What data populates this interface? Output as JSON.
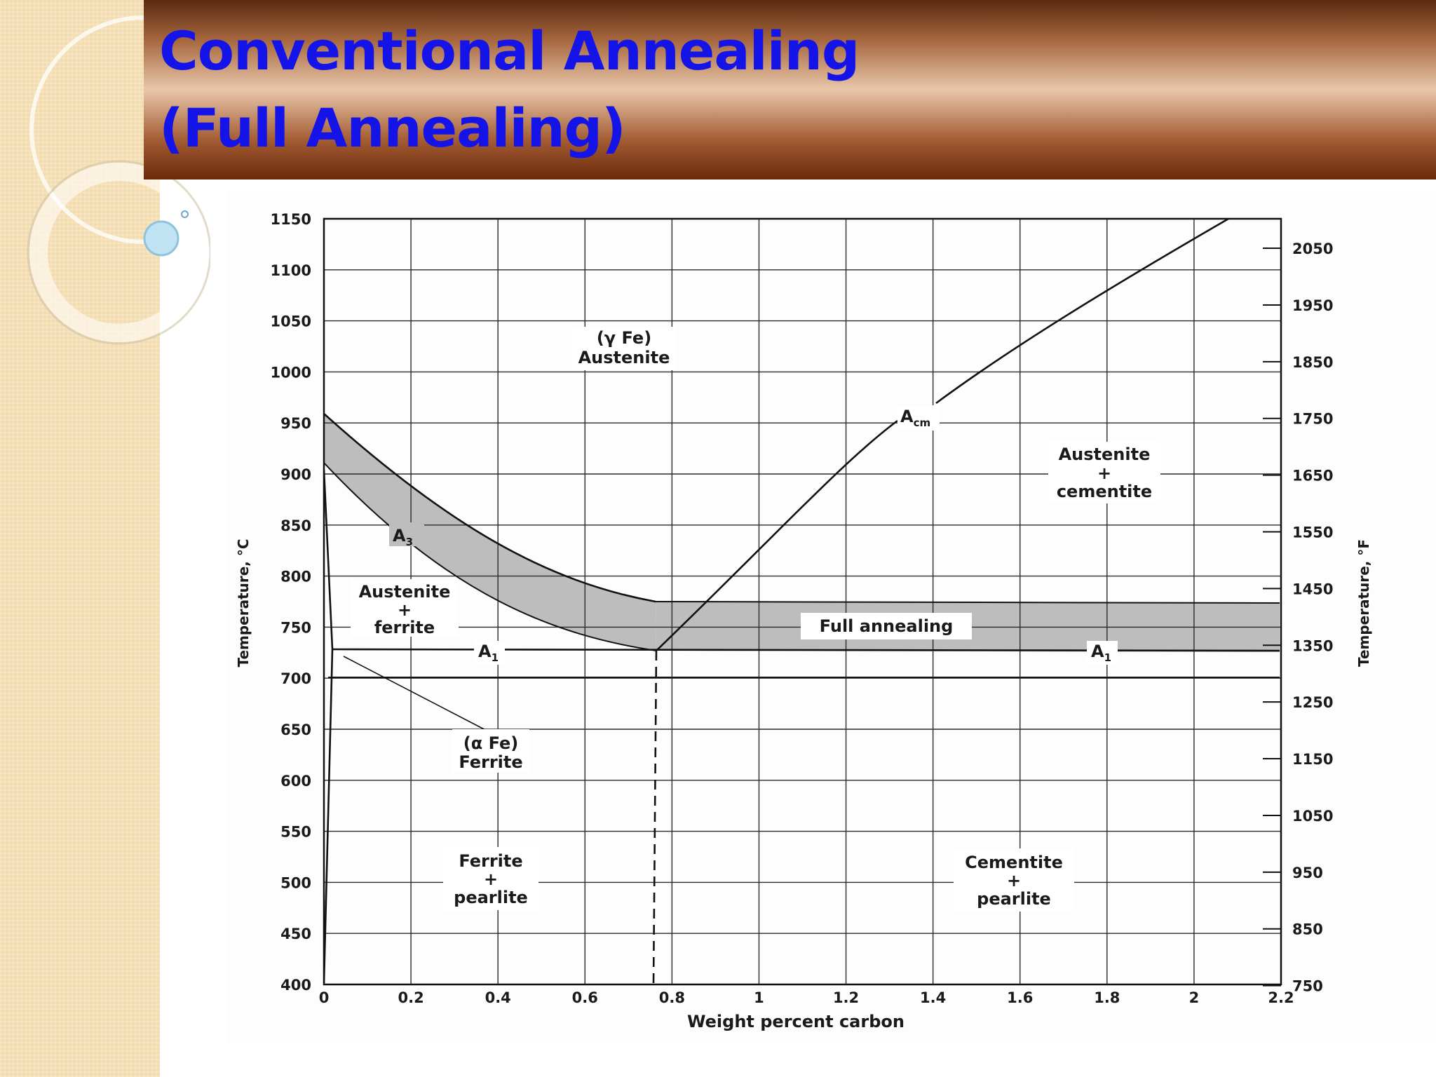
{
  "title": {
    "line1": "Conventional Annealing",
    "line2": "(Full Annealing)"
  },
  "colors": {
    "title_text": "#1414e8",
    "title_bar_dark": "#6a2a0b",
    "title_bar_light": "#e9c7aa",
    "left_band": "#f3ddb0",
    "shaded_band": "#bdbdbd"
  },
  "icons": {
    "bullet": "hollow-circle-bullet"
  },
  "diagram": {
    "x_axis_label": "Weight percent carbon",
    "y_axis_label": "Temperature, °C",
    "y2_axis_label": "Temperature, °F",
    "x_ticks": [
      "0",
      "0.2",
      "0.4",
      "0.6",
      "0.8",
      "1",
      "1.2",
      "1.4",
      "1.6",
      "1.8",
      "2",
      "2.2"
    ],
    "y_ticks": [
      "400",
      "450",
      "500",
      "550",
      "600",
      "650",
      "700",
      "750",
      "800",
      "850",
      "900",
      "950",
      "1000",
      "1050",
      "1100",
      "1150"
    ],
    "y2_ticks": [
      "750",
      "850",
      "950",
      "1050",
      "1150",
      "1250",
      "1350",
      "1450",
      "1550",
      "1650",
      "1750",
      "1850",
      "1950",
      "2050"
    ],
    "regions": {
      "gamma": {
        "line1": "(γ Fe)",
        "line2": "Austenite"
      },
      "aust_cem": {
        "line1": "Austenite",
        "line2": "+",
        "line3": "cementite"
      },
      "aust_fer": {
        "line1": "Austenite",
        "line2": "+",
        "line3": "ferrite"
      },
      "alpha": {
        "line1": "(α Fe)",
        "line2": "Ferrite"
      },
      "fer_pearl": {
        "line1": "Ferrite",
        "line2": "+",
        "line3": "pearlite"
      },
      "cem_pearl": {
        "line1": "Cementite",
        "line2": "+",
        "line3": "pearlite"
      },
      "full_annealing": "Full annealing"
    },
    "labels": {
      "a3": {
        "main": "A",
        "sub": "3"
      },
      "acm": {
        "main": "A",
        "sub": "cm"
      },
      "a1_left": {
        "main": "A",
        "sub": "1"
      },
      "a1_right": {
        "main": "A",
        "sub": "1"
      }
    }
  }
}
